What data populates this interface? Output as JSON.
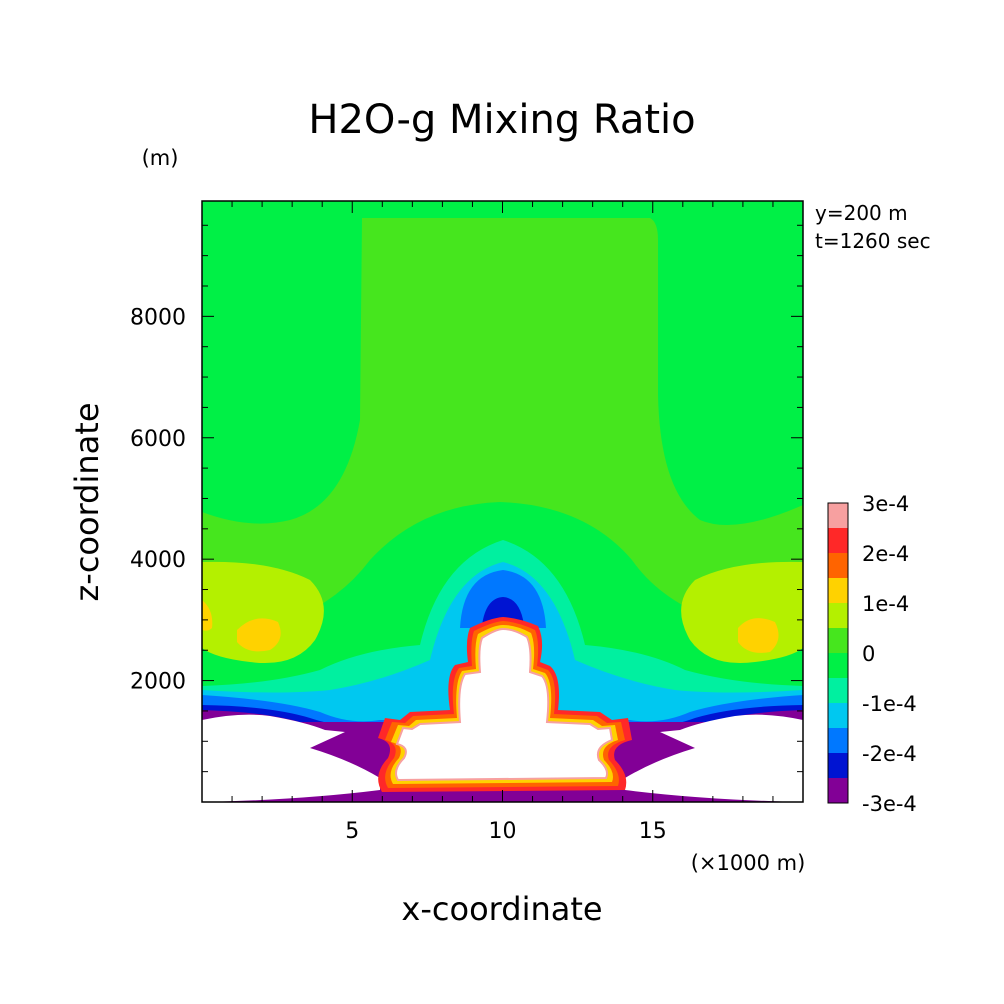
{
  "chart_data": {
    "type": "heatmap",
    "title": "H2O-g Mixing Ratio",
    "xlabel": "x-coordinate",
    "ylabel": "z-coordinate",
    "x_unit": "(×1000 m)",
    "y_unit": "(m)",
    "annotations": [
      "y=200 m",
      "t=1260 sec"
    ],
    "xlim": [
      0,
      20
    ],
    "ylim": [
      0,
      9900
    ],
    "x_ticks": [
      5,
      10,
      15
    ],
    "x_tick_labels": [
      "5",
      "10",
      "15"
    ],
    "y_ticks": [
      2000,
      4000,
      6000,
      8000
    ],
    "y_tick_labels": [
      "2000",
      "4000",
      "6000",
      "8000"
    ],
    "grid": false,
    "colorbar": {
      "label_values": [
        0.0003,
        0.0002,
        0.0001,
        0,
        -0.0001,
        -0.0002,
        -0.0003
      ],
      "labels": [
        "3e-4",
        "2e-4",
        "1e-4",
        "0",
        "-1e-4",
        "-2e-4",
        "-3e-4"
      ],
      "levels_top_to_bottom": [
        {
          "min": 0.00025,
          "max": 0.0003,
          "color": "#f7a0a0"
        },
        {
          "min": 0.0002,
          "max": 0.00025,
          "color": "#ff2828"
        },
        {
          "min": 0.00015,
          "max": 0.0002,
          "color": "#ff6400"
        },
        {
          "min": 0.0001,
          "max": 0.00015,
          "color": "#ffd200"
        },
        {
          "min": 5e-05,
          "max": 0.0001,
          "color": "#b4f000"
        },
        {
          "min": 0,
          "max": 5e-05,
          "color": "#46e61e"
        },
        {
          "min": -5e-05,
          "max": 0,
          "color": "#00f046"
        },
        {
          "min": -0.0001,
          "max": -5e-05,
          "color": "#00f0a0"
        },
        {
          "min": -0.00015,
          "max": -0.0001,
          "color": "#00c8f0"
        },
        {
          "min": -0.0002,
          "max": -0.00015,
          "color": "#0078ff"
        },
        {
          "min": -0.00025,
          "max": -0.0002,
          "color": "#0014d2"
        },
        {
          "min": -0.0003,
          "max": -0.00025,
          "color": "#820096"
        }
      ]
    }
  }
}
